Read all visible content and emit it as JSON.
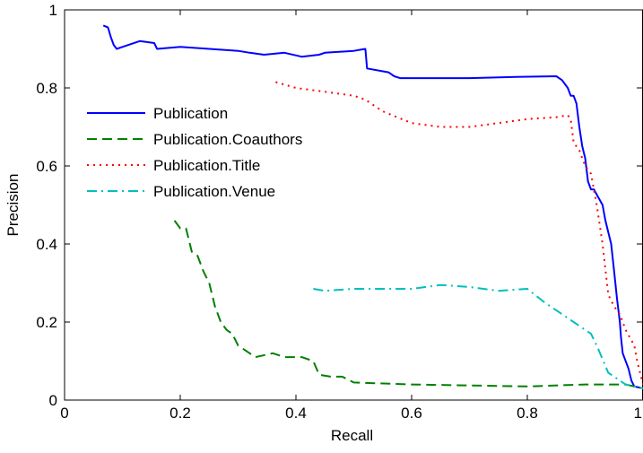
{
  "chart_data": {
    "type": "line",
    "title": "",
    "xlabel": "Recall",
    "ylabel": "Precision",
    "xlim": [
      0,
      1
    ],
    "ylim": [
      0,
      1
    ],
    "xticks": [
      "0",
      "0.2",
      "0.4",
      "0.6",
      "0.8",
      "1"
    ],
    "yticks": [
      "0",
      "0.2",
      "0.4",
      "0.6",
      "0.8",
      "1"
    ],
    "grid": false,
    "legend_position": "upper-left",
    "series": [
      {
        "name": "Publication",
        "color": "#0000ff",
        "style": "solid",
        "x": [
          0.067,
          0.075,
          0.08,
          0.085,
          0.09,
          0.1,
          0.13,
          0.155,
          0.16,
          0.2,
          0.25,
          0.3,
          0.32,
          0.345,
          0.38,
          0.41,
          0.44,
          0.45,
          0.5,
          0.52,
          0.523,
          0.56,
          0.57,
          0.58,
          0.6,
          0.7,
          0.78,
          0.85,
          0.86,
          0.87,
          0.875,
          0.88,
          0.885,
          0.89,
          0.895,
          0.9,
          0.905,
          0.91,
          0.915,
          0.93,
          0.935,
          0.945,
          0.95,
          0.955,
          0.96,
          0.962,
          0.965,
          0.975,
          0.98,
          0.985,
          1.0
        ],
        "y": [
          0.96,
          0.955,
          0.93,
          0.91,
          0.9,
          0.905,
          0.92,
          0.915,
          0.9,
          0.905,
          0.9,
          0.895,
          0.89,
          0.885,
          0.89,
          0.88,
          0.885,
          0.89,
          0.895,
          0.9,
          0.85,
          0.84,
          0.83,
          0.825,
          0.825,
          0.825,
          0.828,
          0.83,
          0.82,
          0.8,
          0.78,
          0.78,
          0.76,
          0.7,
          0.65,
          0.62,
          0.56,
          0.54,
          0.54,
          0.5,
          0.46,
          0.4,
          0.33,
          0.26,
          0.2,
          0.16,
          0.12,
          0.08,
          0.05,
          0.035,
          0.03
        ]
      },
      {
        "name": "Publication.Coauthors",
        "color": "#008000",
        "style": "dashed",
        "x": [
          0.19,
          0.2,
          0.21,
          0.22,
          0.23,
          0.24,
          0.25,
          0.26,
          0.27,
          0.28,
          0.29,
          0.3,
          0.31,
          0.32,
          0.33,
          0.36,
          0.38,
          0.41,
          0.43,
          0.44,
          0.46,
          0.48,
          0.5,
          0.6,
          0.8,
          0.9,
          0.97,
          1.0
        ],
        "y": [
          0.46,
          0.44,
          0.44,
          0.38,
          0.37,
          0.33,
          0.3,
          0.24,
          0.2,
          0.18,
          0.17,
          0.14,
          0.13,
          0.12,
          0.11,
          0.12,
          0.11,
          0.11,
          0.1,
          0.065,
          0.06,
          0.06,
          0.045,
          0.04,
          0.035,
          0.04,
          0.04,
          0.03
        ]
      },
      {
        "name": "Publication.Title",
        "color": "#ff0000",
        "style": "dotted",
        "x": [
          0.365,
          0.4,
          0.45,
          0.5,
          0.52,
          0.55,
          0.6,
          0.65,
          0.7,
          0.8,
          0.85,
          0.87,
          0.875,
          0.88,
          0.89,
          0.9,
          0.91,
          0.92,
          0.93,
          0.94,
          0.95,
          0.96,
          0.97,
          0.985,
          0.99,
          1.0
        ],
        "y": [
          0.815,
          0.8,
          0.79,
          0.78,
          0.77,
          0.74,
          0.71,
          0.7,
          0.7,
          0.72,
          0.725,
          0.73,
          0.72,
          0.66,
          0.64,
          0.6,
          0.58,
          0.5,
          0.4,
          0.27,
          0.24,
          0.22,
          0.18,
          0.14,
          0.1,
          0.04
        ]
      },
      {
        "name": "Publication.Venue",
        "color": "#00bfbf",
        "style": "dashdot",
        "x": [
          0.43,
          0.45,
          0.5,
          0.55,
          0.6,
          0.65,
          0.7,
          0.75,
          0.8,
          0.83,
          0.85,
          0.88,
          0.9,
          0.91,
          0.92,
          0.94,
          0.97,
          1.0
        ],
        "y": [
          0.285,
          0.28,
          0.285,
          0.285,
          0.285,
          0.295,
          0.29,
          0.28,
          0.285,
          0.25,
          0.23,
          0.2,
          0.18,
          0.17,
          0.14,
          0.07,
          0.04,
          0.03
        ]
      }
    ]
  }
}
